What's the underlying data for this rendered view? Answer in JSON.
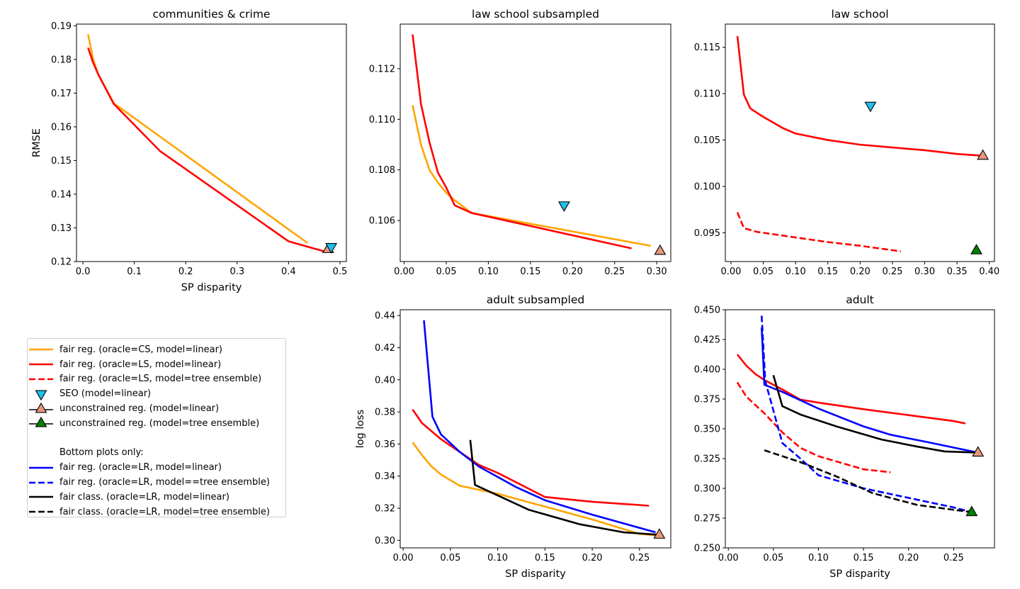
{
  "colors": {
    "orange": "#ffa500",
    "red": "#ff0000",
    "blue": "#0000ff",
    "black": "#000000",
    "seo": "#1ec0f0",
    "unc_linear": "#e9967a",
    "unc_tree": "#008000"
  },
  "legend": {
    "items": [
      {
        "label": "fair reg. (oracle=CS, model=linear)",
        "kind": "line",
        "color": "#ffa500",
        "dash": false
      },
      {
        "label": "fair reg. (oracle=LS, model=linear)",
        "kind": "line",
        "color": "#ff0000",
        "dash": false
      },
      {
        "label": "fair reg. (oracle=LS, model=tree ensemble)",
        "kind": "line",
        "color": "#ff0000",
        "dash": true
      },
      {
        "label": "SEO (model=linear)",
        "kind": "down",
        "color": "#1ec0f0"
      },
      {
        "label": "unconstrained reg. (model=linear)",
        "kind": "up",
        "color": "#e9967a"
      },
      {
        "label": "unconstrained reg. (model=tree ensemble)",
        "kind": "up",
        "color": "#008000"
      }
    ],
    "section_label": "Bottom plots only:",
    "items2": [
      {
        "label": "fair reg. (oracle=LR, model=linear)",
        "kind": "line",
        "color": "#0000ff",
        "dash": false
      },
      {
        "label": "fair reg. (oracle=LR, model==tree ensemble)",
        "kind": "line",
        "color": "#0000ff",
        "dash": true
      },
      {
        "label": "fair class. (oracle=LR, model=linear)",
        "kind": "line",
        "color": "#000000",
        "dash": false
      },
      {
        "label": "fair class. (oracle=LR, model=tree ensemble)",
        "kind": "line",
        "color": "#000000",
        "dash": true
      }
    ]
  },
  "chart_data": [
    {
      "type": "line",
      "title": "communities & crime",
      "xlabel": "SP disparity",
      "ylabel": "RMSE",
      "xlim": [
        -0.0125,
        0.5125
      ],
      "ylim": [
        0.12,
        0.1905
      ],
      "xticks": [
        0.0,
        0.1,
        0.2,
        0.3,
        0.4,
        0.5
      ],
      "xtick_labels": [
        "0.0",
        "0.1",
        "0.2",
        "0.3",
        "0.4",
        "0.5"
      ],
      "yticks": [
        0.12,
        0.13,
        0.14,
        0.15,
        0.16,
        0.17,
        0.18,
        0.19
      ],
      "ytick_labels": [
        "0.12",
        "0.13",
        "0.14",
        "0.15",
        "0.16",
        "0.17",
        "0.18",
        "0.19"
      ],
      "series": [
        {
          "name": "fair reg. (oracle=CS, model=linear)",
          "color": "#ffa500",
          "dash": false,
          "x": [
            0.01,
            0.02,
            0.03,
            0.06,
            0.437
          ],
          "y": [
            0.1875,
            0.18,
            0.1755,
            0.167,
            0.1255
          ]
        },
        {
          "name": "fair reg. (oracle=LS, model=linear)",
          "color": "#ff0000",
          "dash": false,
          "x": [
            0.01,
            0.02,
            0.03,
            0.06,
            0.15,
            0.4,
            0.47
          ],
          "y": [
            0.1835,
            0.179,
            0.1755,
            0.1668,
            0.1528,
            0.126,
            0.123
          ]
        }
      ],
      "markers": [
        {
          "name": "unconstrained reg. (model=linear)",
          "kind": "up",
          "color": "#e9967a",
          "x": 0.477,
          "y": 0.1237
        },
        {
          "name": "SEO (model=linear)",
          "kind": "down",
          "color": "#1ec0f0",
          "x": 0.483,
          "y": 0.1243
        }
      ]
    },
    {
      "type": "line",
      "title": "law school subsampled",
      "xlabel": "",
      "ylabel": "",
      "xlim": [
        -0.0047,
        0.3167
      ],
      "ylim": [
        0.10438,
        0.11376
      ],
      "xticks": [
        0.0,
        0.05,
        0.1,
        0.15,
        0.2,
        0.25,
        0.3
      ],
      "xtick_labels": [
        "0.00",
        "0.05",
        "0.10",
        "0.15",
        "0.20",
        "0.25",
        "0.30"
      ],
      "yticks": [
        0.106,
        0.108,
        0.11,
        0.112
      ],
      "ytick_labels": [
        "0.106",
        "0.108",
        "0.110",
        "0.112"
      ],
      "series": [
        {
          "name": "fair reg. (oracle=CS, model=linear)",
          "color": "#ffa500",
          "dash": false,
          "x": [
            0.01,
            0.02,
            0.03,
            0.04,
            0.05,
            0.06,
            0.08,
            0.293
          ],
          "y": [
            0.11055,
            0.109,
            0.108,
            0.1075,
            0.1071,
            0.1068,
            0.1063,
            0.105
          ]
        },
        {
          "name": "fair reg. (oracle=LS, model=linear)",
          "color": "#ff0000",
          "dash": false,
          "x": [
            0.01,
            0.02,
            0.03,
            0.04,
            0.05,
            0.06,
            0.08,
            0.27
          ],
          "y": [
            0.11335,
            0.1106,
            0.1091,
            0.1079,
            0.1073,
            0.1066,
            0.1063,
            0.1049
          ]
        }
      ],
      "markers": [
        {
          "name": "SEO (model=linear)",
          "kind": "down",
          "color": "#1ec0f0",
          "x": 0.19,
          "y": 0.1066
        },
        {
          "name": "unconstrained reg. (model=linear)",
          "kind": "up",
          "color": "#e9967a",
          "x": 0.304,
          "y": 0.1048
        }
      ]
    },
    {
      "type": "line",
      "title": "law school",
      "xlabel": "",
      "ylabel": "",
      "xlim": [
        -0.0087,
        0.408
      ],
      "ylim": [
        0.0919,
        0.1175
      ],
      "xticks": [
        0.0,
        0.05,
        0.1,
        0.15,
        0.2,
        0.25,
        0.3,
        0.35,
        0.4
      ],
      "xtick_labels": [
        "0.00",
        "0.05",
        "0.10",
        "0.15",
        "0.20",
        "0.25",
        "0.30",
        "0.35",
        "0.40"
      ],
      "yticks": [
        0.095,
        0.1,
        0.105,
        0.11,
        0.115
      ],
      "ytick_labels": [
        "0.095",
        "0.100",
        "0.105",
        "0.110",
        "0.115"
      ],
      "series": [
        {
          "name": "fair reg. (oracle=LS, model=linear)",
          "color": "#ff0000",
          "dash": false,
          "x": [
            0.01,
            0.02,
            0.03,
            0.05,
            0.08,
            0.1,
            0.15,
            0.2,
            0.25,
            0.3,
            0.35,
            0.39
          ],
          "y": [
            0.1162,
            0.1099,
            0.1084,
            0.1075,
            0.1063,
            0.1057,
            0.105,
            0.1045,
            0.1042,
            0.1039,
            0.1035,
            0.1033
          ]
        },
        {
          "name": "fair reg. (oracle=LS, model=tree ensemble)",
          "color": "#ff0000",
          "dash": true,
          "x": [
            0.01,
            0.02,
            0.04,
            0.06,
            0.1,
            0.15,
            0.2,
            0.263
          ],
          "y": [
            0.0972,
            0.0955,
            0.0951,
            0.0949,
            0.0945,
            0.094,
            0.0936,
            0.093
          ]
        }
      ],
      "markers": [
        {
          "name": "SEO (model=linear)",
          "kind": "down",
          "color": "#1ec0f0",
          "x": 0.216,
          "y": 0.1087
        },
        {
          "name": "unconstrained reg. (model=linear)",
          "kind": "up",
          "color": "#e9967a",
          "x": 0.39,
          "y": 0.1033
        },
        {
          "name": "unconstrained reg. (model=tree ensemble)",
          "kind": "up",
          "color": "#008000",
          "x": 0.38,
          "y": 0.0931
        }
      ]
    },
    {
      "type": "line",
      "title": "adult subsampled",
      "xlabel": "SP disparity",
      "ylabel": "log loss",
      "xlim": [
        -0.0031,
        0.2831
      ],
      "ylim": [
        0.2953,
        0.4436
      ],
      "xticks": [
        0.0,
        0.05,
        0.1,
        0.15,
        0.2,
        0.25
      ],
      "xtick_labels": [
        "0.00",
        "0.05",
        "0.10",
        "0.15",
        "0.20",
        "0.25"
      ],
      "yticks": [
        0.3,
        0.32,
        0.34,
        0.36,
        0.38,
        0.4,
        0.42,
        0.44
      ],
      "ytick_labels": [
        "0.30",
        "0.32",
        "0.34",
        "0.36",
        "0.38",
        "0.40",
        "0.42",
        "0.44"
      ],
      "series": [
        {
          "name": "fair reg. (oracle=CS, model=linear)",
          "color": "#ffa500",
          "dash": false,
          "x": [
            0.01,
            0.02,
            0.03,
            0.04,
            0.06,
            0.1,
            0.15,
            0.2,
            0.25,
            0.27
          ],
          "y": [
            0.361,
            0.353,
            0.346,
            0.341,
            0.334,
            0.329,
            0.321,
            0.313,
            0.304,
            0.303
          ]
        },
        {
          "name": "fair reg. (oracle=LS, model=linear)",
          "color": "#ff0000",
          "dash": false,
          "x": [
            0.01,
            0.02,
            0.04,
            0.06,
            0.08,
            0.1,
            0.15,
            0.2,
            0.25,
            0.26
          ],
          "y": [
            0.3815,
            0.373,
            0.363,
            0.355,
            0.347,
            0.342,
            0.327,
            0.324,
            0.322,
            0.3215
          ]
        },
        {
          "name": "fair reg. (oracle=LR, model=linear)",
          "color": "#0000ff",
          "dash": false,
          "x": [
            0.022,
            0.031,
            0.04,
            0.06,
            0.08,
            0.12,
            0.15,
            0.2,
            0.267
          ],
          "y": [
            0.437,
            0.377,
            0.366,
            0.355,
            0.346,
            0.333,
            0.325,
            0.316,
            0.305
          ]
        },
        {
          "name": "fair class. (oracle=LR, model=linear)",
          "color": "#000000",
          "dash": false,
          "x": [
            0.071,
            0.076,
            0.1,
            0.133,
            0.187,
            0.233,
            0.27
          ],
          "y": [
            0.3625,
            0.3345,
            0.328,
            0.319,
            0.31,
            0.305,
            0.3035
          ]
        }
      ],
      "markers": [
        {
          "name": "unconstrained reg. (model=linear)",
          "kind": "up",
          "color": "#e9967a",
          "x": 0.271,
          "y": 0.3035
        }
      ]
    },
    {
      "type": "line",
      "title": "adult",
      "xlabel": "SP disparity",
      "ylabel": "",
      "xlim": [
        -0.0033,
        0.2953
      ],
      "ylim": [
        0.25,
        0.45
      ],
      "xticks": [
        0.0,
        0.05,
        0.1,
        0.15,
        0.2,
        0.25
      ],
      "xtick_labels": [
        "0.00",
        "0.05",
        "0.10",
        "0.15",
        "0.20",
        "0.25"
      ],
      "yticks": [
        0.25,
        0.275,
        0.3,
        0.325,
        0.35,
        0.375,
        0.4,
        0.425,
        0.45
      ],
      "ytick_labels": [
        "0.250",
        "0.275",
        "0.300",
        "0.325",
        "0.350",
        "0.375",
        "0.400",
        "0.425",
        "0.450"
      ],
      "series": [
        {
          "name": "fair reg. (oracle=LS, model=linear)",
          "color": "#ff0000",
          "dash": false,
          "x": [
            0.01,
            0.02,
            0.03,
            0.04,
            0.06,
            0.08,
            0.1,
            0.15,
            0.2,
            0.25,
            0.263
          ],
          "y": [
            0.4125,
            0.403,
            0.396,
            0.391,
            0.383,
            0.3745,
            0.372,
            0.3665,
            0.3615,
            0.3565,
            0.3545
          ]
        },
        {
          "name": "fair reg. (oracle=LS, model=tree ensemble)",
          "color": "#ff0000",
          "dash": true,
          "x": [
            0.01,
            0.02,
            0.04,
            0.06,
            0.08,
            0.1,
            0.15,
            0.18
          ],
          "y": [
            0.389,
            0.377,
            0.363,
            0.347,
            0.334,
            0.327,
            0.316,
            0.3135
          ]
        },
        {
          "name": "fair reg. (oracle=LR, model=linear)",
          "color": "#0000ff",
          "dash": false,
          "x": [
            0.037,
            0.04,
            0.06,
            0.08,
            0.1,
            0.15,
            0.18,
            0.22,
            0.277
          ],
          "y": [
            0.435,
            0.387,
            0.381,
            0.374,
            0.367,
            0.352,
            0.345,
            0.339,
            0.33
          ]
        },
        {
          "name": "fair reg. (oracle=LR, model==tree ensemble)",
          "color": "#0000ff",
          "dash": true,
          "x": [
            0.037,
            0.041,
            0.06,
            0.08,
            0.1,
            0.15,
            0.2,
            0.25,
            0.27
          ],
          "y": [
            0.445,
            0.39,
            0.338,
            0.325,
            0.311,
            0.3,
            0.292,
            0.284,
            0.28
          ]
        },
        {
          "name": "fair class. (oracle=LR, model=linear)",
          "color": "#000000",
          "dash": false,
          "x": [
            0.05,
            0.06,
            0.08,
            0.12,
            0.17,
            0.21,
            0.24,
            0.277
          ],
          "y": [
            0.395,
            0.369,
            0.362,
            0.352,
            0.341,
            0.335,
            0.331,
            0.33
          ]
        },
        {
          "name": "fair class. (oracle=LR, model=tree ensemble)",
          "color": "#000000",
          "dash": true,
          "x": [
            0.04,
            0.08,
            0.12,
            0.16,
            0.21,
            0.25,
            0.27
          ],
          "y": [
            0.332,
            0.322,
            0.31,
            0.296,
            0.286,
            0.282,
            0.28
          ]
        }
      ],
      "markers": [
        {
          "name": "unconstrained reg. (model=linear)",
          "kind": "up",
          "color": "#e9967a",
          "x": 0.277,
          "y": 0.33
        },
        {
          "name": "unconstrained reg. (model=tree ensemble)",
          "kind": "up",
          "color": "#008000",
          "x": 0.27,
          "y": 0.28
        }
      ]
    }
  ]
}
